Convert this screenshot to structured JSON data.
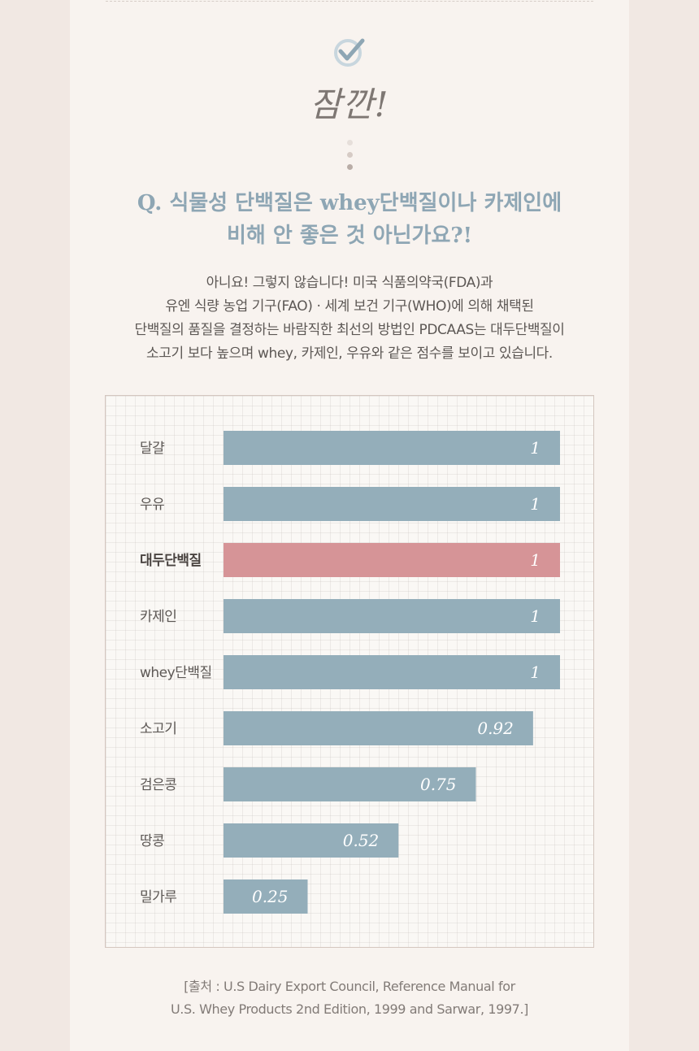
{
  "heading": "잠깐!",
  "question": {
    "line1": "Q. 식물성 단백질은 whey단백질이나 카제인에",
    "line2": "비해 안 좋은 것 아닌가요?!"
  },
  "body": {
    "line1": "아니요! 그렇지 않습니다! 미국 식품의약국(FDA)과",
    "line2": "유엔 식량 농업 기구(FAO) · 세계 보건 기구(WHO)에 의해 채택된",
    "line3": "단백질의 품질을 결정하는 바람직한 최선의 방법인  PDCAAS는 대두단백질이",
    "line4": "소고기 보다 높으며 whey, 카제인, 우유와 같은 점수를 보이고 있습니다."
  },
  "source": {
    "line1": "[출처 : U.S Dairy Export Council, Reference Manual for",
    "line2": "U.S. Whey Products 2nd Edition, 1999 and Sarwar, 1997.]"
  },
  "colors": {
    "accent": "#8ea6b4",
    "bar": "#94aeba",
    "highlight": "#d69497",
    "check": "#9fb5c1"
  },
  "icons": {
    "check": "check-circle-icon",
    "dots": "vertical-dots-icon"
  },
  "chart_data": {
    "type": "bar",
    "orientation": "horizontal",
    "categories": [
      "달걀",
      "우유",
      "대두단백질",
      "카제인",
      "whey단백질",
      "소고기",
      "검은콩",
      "땅콩",
      "밀가루"
    ],
    "values": [
      1,
      1,
      1,
      1,
      1,
      0.92,
      0.75,
      0.52,
      0.25
    ],
    "data_labels": [
      "1",
      "1",
      "1",
      "1",
      "1",
      "0.92",
      "0.75",
      "0.52",
      "0.25"
    ],
    "highlight": "대두단백질",
    "xlim": [
      0,
      1
    ],
    "grid": true,
    "legend": "none"
  }
}
